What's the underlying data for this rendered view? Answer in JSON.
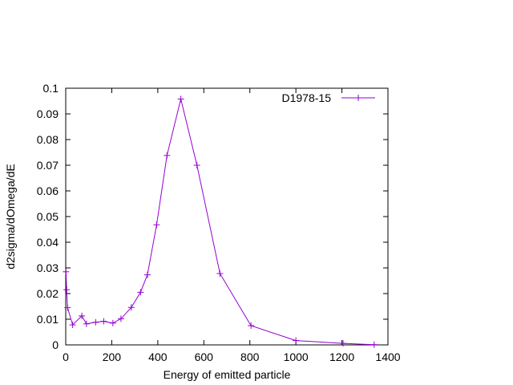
{
  "chart_data": {
    "type": "line",
    "xlabel": "Energy of emitted particle",
    "ylabel": "d2sigma/dOmega/dE",
    "xlim": [
      0,
      1400
    ],
    "ylim": [
      0,
      0.1
    ],
    "xticks": [
      0,
      200,
      400,
      600,
      800,
      1000,
      1200,
      1400
    ],
    "yticks": [
      0,
      0.01,
      0.02,
      0.03,
      0.04,
      0.05,
      0.06,
      0.07,
      0.08,
      0.09,
      0.1
    ],
    "xtick_labels": [
      "0",
      "200",
      "400",
      "600",
      "800",
      "1000",
      "1200",
      "1400"
    ],
    "ytick_labels": [
      "0",
      "0.01",
      "0.02",
      "0.03",
      "0.04",
      "0.05",
      "0.06",
      "0.07",
      "0.08",
      "0.09",
      "0.1"
    ],
    "grid": false,
    "legend_position": "top-right",
    "series": [
      {
        "name": "D1978-15",
        "color": "#9400d3",
        "marker": "plus",
        "x": [
          1,
          4,
          8,
          30,
          70,
          90,
          130,
          165,
          205,
          240,
          285,
          325,
          355,
          395,
          440,
          500,
          570,
          670,
          805,
          1000,
          1205,
          1340
        ],
        "y": [
          0.0285,
          0.0215,
          0.0145,
          0.0078,
          0.0113,
          0.0082,
          0.0088,
          0.0092,
          0.0085,
          0.0102,
          0.0146,
          0.0205,
          0.0273,
          0.0468,
          0.0738,
          0.0958,
          0.07,
          0.0278,
          0.0075,
          0.0017,
          0.0006,
          0.0001
        ]
      }
    ]
  }
}
